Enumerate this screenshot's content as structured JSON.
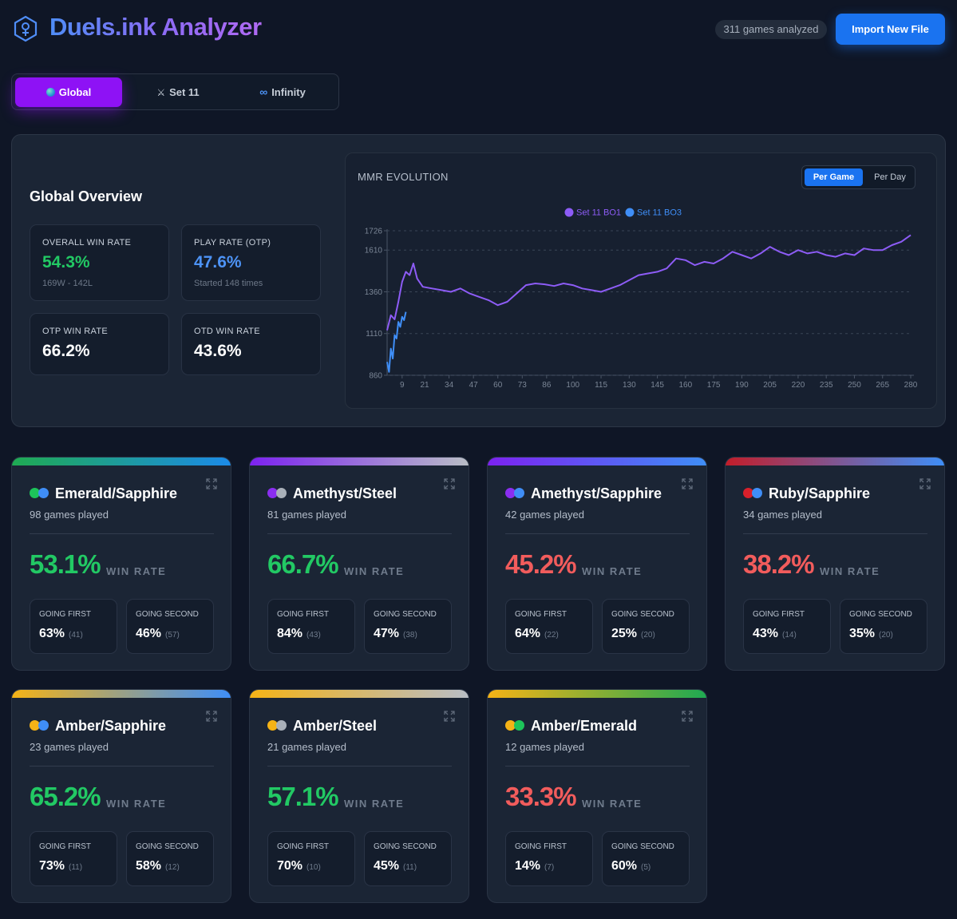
{
  "header": {
    "title": "Duels.ink Analyzer",
    "games_badge": "311 games analyzed",
    "import_label": "Import New File"
  },
  "tabs": [
    {
      "label": "Global",
      "icon": "globe-icon",
      "active": true
    },
    {
      "label": "Set 11",
      "icon": "crossed-swords-icon",
      "active": false
    },
    {
      "label": "Infinity",
      "icon": "infinity-icon",
      "active": false
    }
  ],
  "overview": {
    "title": "Global Overview",
    "stats": [
      {
        "label": "OVERALL WIN RATE",
        "value": "54.3%",
        "sub": "169W - 142L",
        "color": "#22c964"
      },
      {
        "label": "PLAY RATE (OTP)",
        "value": "47.6%",
        "sub": "Started 148 times",
        "color": "#4d93f6"
      },
      {
        "label": "OTP WIN RATE",
        "value": "66.2%",
        "sub": "",
        "color": "#ffffff"
      },
      {
        "label": "OTD WIN RATE",
        "value": "43.6%",
        "sub": "",
        "color": "#ffffff"
      }
    ]
  },
  "chart_data": {
    "type": "line",
    "title": "MMR EVOLUTION",
    "toggle": {
      "per_game": "Per Game",
      "per_day": "Per Day",
      "selected": "Per Game"
    },
    "legend": [
      "Set 11 BO1",
      "Set 11 BO3"
    ],
    "legend_placement": "top-center",
    "y_ticks": [
      860,
      1110,
      1360,
      1610,
      1726
    ],
    "ylim": [
      860,
      1726
    ],
    "x_ticks": [
      9,
      21,
      34,
      47,
      60,
      73,
      86,
      100,
      115,
      130,
      145,
      160,
      175,
      190,
      205,
      220,
      235,
      250,
      265,
      280
    ],
    "xlim": [
      1,
      280
    ],
    "colors": {
      "Set 11 BO1": "#8d5cf6",
      "Set 11 BO3": "#3f8ef7"
    },
    "series": [
      {
        "name": "Set 11 BO1",
        "x": [
          1,
          3,
          5,
          7,
          9,
          11,
          13,
          15,
          17,
          20,
          25,
          30,
          35,
          40,
          45,
          50,
          55,
          60,
          65,
          70,
          75,
          80,
          85,
          90,
          95,
          100,
          105,
          110,
          115,
          120,
          125,
          130,
          135,
          140,
          145,
          150,
          155,
          160,
          165,
          170,
          175,
          180,
          185,
          190,
          195,
          200,
          205,
          210,
          215,
          220,
          225,
          230,
          235,
          240,
          245,
          250,
          255,
          260,
          265,
          270,
          275,
          280
        ],
        "values": [
          1130,
          1220,
          1195,
          1300,
          1420,
          1480,
          1460,
          1530,
          1440,
          1390,
          1380,
          1370,
          1360,
          1380,
          1350,
          1330,
          1310,
          1280,
          1300,
          1350,
          1400,
          1410,
          1405,
          1395,
          1410,
          1400,
          1380,
          1370,
          1360,
          1380,
          1400,
          1430,
          1460,
          1470,
          1480,
          1500,
          1560,
          1550,
          1520,
          1540,
          1530,
          1560,
          1600,
          1580,
          1560,
          1590,
          1630,
          1600,
          1580,
          1610,
          1590,
          1600,
          1580,
          1570,
          1590,
          1580,
          1620,
          1610,
          1610,
          1640,
          1660,
          1700
        ]
      },
      {
        "name": "Set 11 BO3",
        "x": [
          1,
          2,
          3,
          4,
          5,
          6,
          7,
          8,
          9,
          10,
          11
        ],
        "values": [
          940,
          880,
          1020,
          960,
          1100,
          1080,
          1180,
          1150,
          1210,
          1190,
          1240
        ]
      }
    ]
  },
  "decks": [
    {
      "name": "Emerald/Sapphire",
      "games": "98 games played",
      "win_rate": "53.1%",
      "wr_color": "#22c964",
      "wr_label": "WIN RATE",
      "inks": [
        "#1dc45a",
        "#3f8ef7"
      ],
      "bar": [
        "#1faa52",
        "#1c8be8"
      ],
      "first_label": "GOING FIRST",
      "first_value": "63%",
      "first_count": "(41)",
      "second_label": "GOING SECOND",
      "second_value": "46%",
      "second_count": "(57)"
    },
    {
      "name": "Amethyst/Steel",
      "games": "81 games played",
      "win_rate": "66.7%",
      "wr_color": "#22c964",
      "wr_label": "WIN RATE",
      "inks": [
        "#8b2ef0",
        "#a9b0b9"
      ],
      "bar": [
        "#7c22f0",
        "#b9bec6"
      ],
      "first_label": "GOING FIRST",
      "first_value": "84%",
      "first_count": "(43)",
      "second_label": "GOING SECOND",
      "second_value": "47%",
      "second_count": "(38)"
    },
    {
      "name": "Amethyst/Sapphire",
      "games": "42 games played",
      "win_rate": "45.2%",
      "wr_color": "#f25c5c",
      "wr_label": "WIN RATE",
      "inks": [
        "#8b2ef0",
        "#3f8ef7"
      ],
      "bar": [
        "#7c22f0",
        "#3f8ef7"
      ],
      "first_label": "GOING FIRST",
      "first_value": "64%",
      "first_count": "(22)",
      "second_label": "GOING SECOND",
      "second_value": "25%",
      "second_count": "(20)"
    },
    {
      "name": "Ruby/Sapphire",
      "games": "34 games played",
      "win_rate": "38.2%",
      "wr_color": "#f25c5c",
      "wr_label": "WIN RATE",
      "inks": [
        "#d9202b",
        "#3f8ef7"
      ],
      "bar": [
        "#c21d2a",
        "#3f8ef7"
      ],
      "first_label": "GOING FIRST",
      "first_value": "43%",
      "first_count": "(14)",
      "second_label": "GOING SECOND",
      "second_value": "35%",
      "second_count": "(20)"
    },
    {
      "name": "Amber/Sapphire",
      "games": "23 games played",
      "win_rate": "65.2%",
      "wr_color": "#22c964",
      "wr_label": "WIN RATE",
      "inks": [
        "#f5b316",
        "#3f8ef7"
      ],
      "bar": [
        "#f5b316",
        "#3f8ef7"
      ],
      "first_label": "GOING FIRST",
      "first_value": "73%",
      "first_count": "(11)",
      "second_label": "GOING SECOND",
      "second_value": "58%",
      "second_count": "(12)"
    },
    {
      "name": "Amber/Steel",
      "games": "21 games played",
      "win_rate": "57.1%",
      "wr_color": "#22c964",
      "wr_label": "WIN RATE",
      "inks": [
        "#f5b316",
        "#a9b0b9"
      ],
      "bar": [
        "#f5b316",
        "#b9bec6"
      ],
      "first_label": "GOING FIRST",
      "first_value": "70%",
      "first_count": "(10)",
      "second_label": "GOING SECOND",
      "second_value": "45%",
      "second_count": "(11)"
    },
    {
      "name": "Amber/Emerald",
      "games": "12 games played",
      "win_rate": "33.3%",
      "wr_color": "#f25c5c",
      "wr_label": "WIN RATE",
      "inks": [
        "#f5b316",
        "#1dc45a"
      ],
      "bar": [
        "#f5b316",
        "#1faa52"
      ],
      "first_label": "GOING FIRST",
      "first_value": "14%",
      "first_count": "(7)",
      "second_label": "GOING SECOND",
      "second_value": "60%",
      "second_count": "(5)"
    }
  ]
}
